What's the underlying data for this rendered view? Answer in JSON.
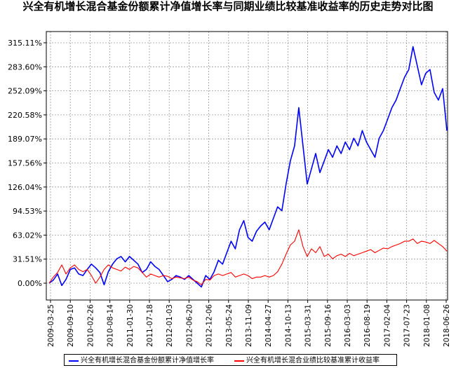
{
  "chart_data": {
    "type": "line",
    "title": "兴全有机增长混合基金份额累计净值增长率与同期业绩比较基准收益率的历史走势对比图",
    "y_ticks": [
      "315.11%",
      "283.60%",
      "252.09%",
      "220.58%",
      "189.07%",
      "157.56%",
      "126.04%",
      "94.53%",
      "63.02%",
      "31.51%",
      "0.00%"
    ],
    "y_tick_values": [
      315.11,
      283.6,
      252.09,
      220.58,
      189.07,
      157.56,
      126.04,
      94.53,
      63.02,
      31.51,
      0.0
    ],
    "ylim": [
      -7,
      315.11
    ],
    "x_ticks": [
      "2009-03-25",
      "2009-09-10",
      "2010-02-26",
      "2010-08-14",
      "2011-01-30",
      "2011-07-18",
      "2012-01-03",
      "2012-06-20",
      "2012-12-06",
      "2013-05-24",
      "2013-11-09",
      "2014-04-27",
      "2014-10-13",
      "2015-03-31",
      "2015-09-16",
      "2016-03-03",
      "2016-08-19",
      "2017-02-04",
      "2017-07-23",
      "2018-01-08",
      "2018-06-26"
    ],
    "grid": true,
    "legend_position": "bottom",
    "series": [
      {
        "name": "兴全有机增长混合基金份额累计净值增长率",
        "color": "#0000ff",
        "values": [
          0,
          4,
          12,
          -3,
          5,
          18,
          20,
          12,
          10,
          18,
          25,
          20,
          14,
          -2,
          15,
          25,
          32,
          35,
          28,
          35,
          30,
          25,
          14,
          18,
          28,
          22,
          18,
          10,
          2,
          5,
          10,
          8,
          5,
          10,
          5,
          0,
          -5,
          10,
          5,
          15,
          30,
          25,
          40,
          55,
          45,
          70,
          82,
          60,
          55,
          68,
          75,
          80,
          70,
          85,
          100,
          95,
          130,
          160,
          180,
          230,
          180,
          130,
          150,
          170,
          145,
          160,
          175,
          165,
          180,
          170,
          185,
          175,
          190,
          180,
          200,
          185,
          175,
          165,
          190,
          200,
          215,
          230,
          240,
          255,
          270,
          280,
          310,
          285,
          260,
          275,
          280,
          250,
          240,
          255,
          200
        ]
      },
      {
        "name": "兴全有机增长混合业绩比较基准累计收益率",
        "color": "#ff0000",
        "values": [
          0,
          8,
          14,
          24,
          12,
          20,
          24,
          18,
          15,
          18,
          10,
          0,
          8,
          18,
          24,
          20,
          18,
          16,
          21,
          18,
          22,
          20,
          14,
          8,
          12,
          10,
          8,
          10,
          9,
          6,
          8,
          7,
          6,
          8,
          4,
          2,
          -2,
          5,
          4,
          10,
          12,
          10,
          12,
          14,
          8,
          10,
          12,
          10,
          6,
          8,
          8,
          10,
          8,
          10,
          15,
          25,
          38,
          50,
          55,
          70,
          48,
          35,
          45,
          40,
          48,
          35,
          38,
          32,
          36,
          38,
          35,
          39,
          36,
          38,
          40,
          42,
          44,
          40,
          43,
          46,
          45,
          48,
          50,
          52,
          55,
          55,
          58,
          52,
          55,
          54,
          52,
          56,
          52,
          48,
          42
        ]
      }
    ]
  },
  "legend": {
    "series_1": "兴全有机增长混合基金份额累计净值增长率",
    "series_2": "兴全有机增长混合业绩比较基准累计收益率"
  }
}
